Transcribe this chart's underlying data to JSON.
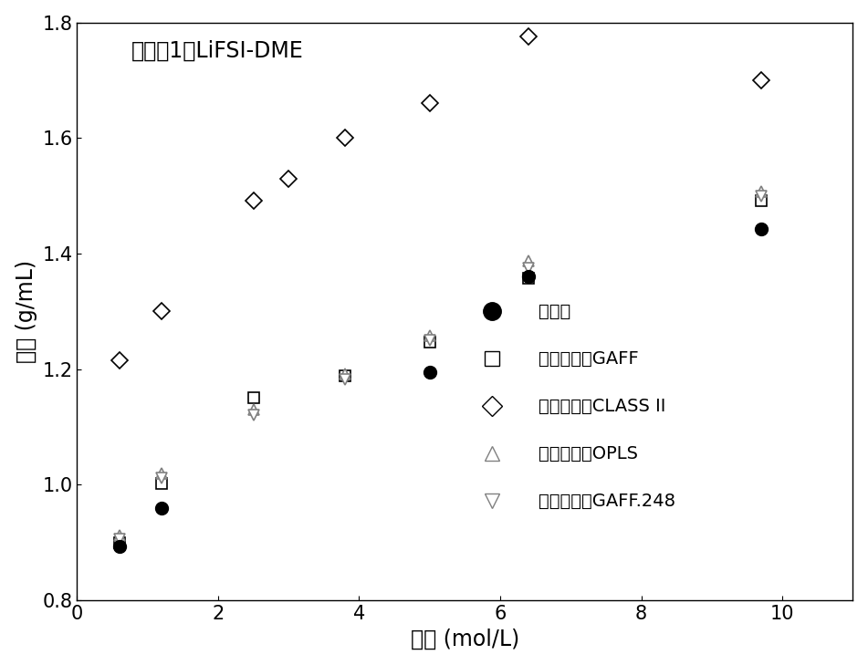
{
  "title": "实施例1：LiFSI-DME",
  "xlabel": "浓度 (mol/L)",
  "ylabel": "密度 (g/mL)",
  "xlim": [
    0,
    11
  ],
  "ylim": [
    0.8,
    1.8
  ],
  "xticks": [
    0,
    2,
    4,
    6,
    8,
    10
  ],
  "yticks": [
    0.8,
    1.0,
    1.2,
    1.4,
    1.6,
    1.8
  ],
  "experimental_x": [
    0.6,
    1.2,
    5.0,
    6.4,
    9.7
  ],
  "experimental_y": [
    0.893,
    0.96,
    1.195,
    1.36,
    1.443
  ],
  "experimental_label": "实测值",
  "gaff_x": [
    0.6,
    1.2,
    2.5,
    3.8,
    5.0,
    6.4,
    9.7
  ],
  "gaff_y": [
    0.9,
    1.002,
    1.15,
    1.188,
    1.247,
    1.358,
    1.492
  ],
  "gaff_label": "力场形式：GAFF",
  "class2_x": [
    0.6,
    1.2,
    2.5,
    3.0,
    3.8,
    5.0,
    6.4,
    9.7
  ],
  "class2_y": [
    1.215,
    1.3,
    1.492,
    1.53,
    1.6,
    1.66,
    1.775,
    1.7
  ],
  "class2_label": "力场形式：CLASS II",
  "opls_x": [
    0.6,
    1.2,
    2.5,
    3.8,
    5.0,
    6.4,
    9.7
  ],
  "opls_y": [
    0.912,
    1.02,
    1.13,
    1.192,
    1.258,
    1.387,
    1.508
  ],
  "opls_label": "力场形式：OPLS",
  "gaff248_x": [
    0.6,
    1.2,
    2.5,
    3.8,
    5.0,
    6.4,
    9.7
  ],
  "gaff248_y": [
    0.905,
    1.012,
    1.12,
    1.182,
    1.25,
    1.375,
    1.5
  ],
  "gaff248_label": "力场形式：GAFF.248",
  "background_color": "#ffffff",
  "title_fontsize": 17,
  "label_fontsize": 17,
  "tick_fontsize": 15,
  "legend_fontsize": 14
}
